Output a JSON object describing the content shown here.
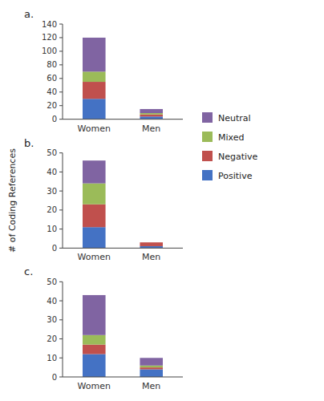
{
  "chart_data": [
    {
      "type": "bar",
      "stacked": true,
      "title": "a.",
      "categories": [
        "Women",
        "Men"
      ],
      "series": [
        {
          "name": "Positive",
          "color": "#4472C4",
          "values": [
            30,
            4
          ]
        },
        {
          "name": "Negative",
          "color": "#C0504D",
          "values": [
            25,
            3
          ]
        },
        {
          "name": "Mixed",
          "color": "#9BBB59",
          "values": [
            15,
            2
          ]
        },
        {
          "name": "Neutral",
          "color": "#8064A2",
          "values": [
            50,
            6
          ]
        }
      ],
      "ylim": [
        0,
        140
      ],
      "yticks": [
        0,
        20,
        40,
        60,
        80,
        100,
        120,
        140
      ],
      "legend": "right"
    },
    {
      "type": "bar",
      "stacked": true,
      "title": "b.",
      "ylabel": "# of Coding References",
      "categories": [
        "Women",
        "Men"
      ],
      "series": [
        {
          "name": "Positive",
          "color": "#4472C4",
          "values": [
            11,
            1
          ]
        },
        {
          "name": "Negative",
          "color": "#C0504D",
          "values": [
            12,
            2
          ]
        },
        {
          "name": "Mixed",
          "color": "#9BBB59",
          "values": [
            11,
            0
          ]
        },
        {
          "name": "Neutral",
          "color": "#8064A2",
          "values": [
            12,
            0
          ]
        }
      ],
      "ylim": [
        0,
        50
      ],
      "yticks": [
        0,
        10,
        20,
        30,
        40,
        50
      ]
    },
    {
      "type": "bar",
      "stacked": true,
      "title": "c.",
      "categories": [
        "Women",
        "Men"
      ],
      "series": [
        {
          "name": "Positive",
          "color": "#4472C4",
          "values": [
            12,
            4
          ]
        },
        {
          "name": "Negative",
          "color": "#C0504D",
          "values": [
            5,
            1
          ]
        },
        {
          "name": "Mixed",
          "color": "#9BBB59",
          "values": [
            5,
            1
          ]
        },
        {
          "name": "Neutral",
          "color": "#8064A2",
          "values": [
            21,
            4
          ]
        }
      ],
      "ylim": [
        0,
        50
      ],
      "yticks": [
        0,
        10,
        20,
        30,
        40,
        50
      ]
    }
  ]
}
